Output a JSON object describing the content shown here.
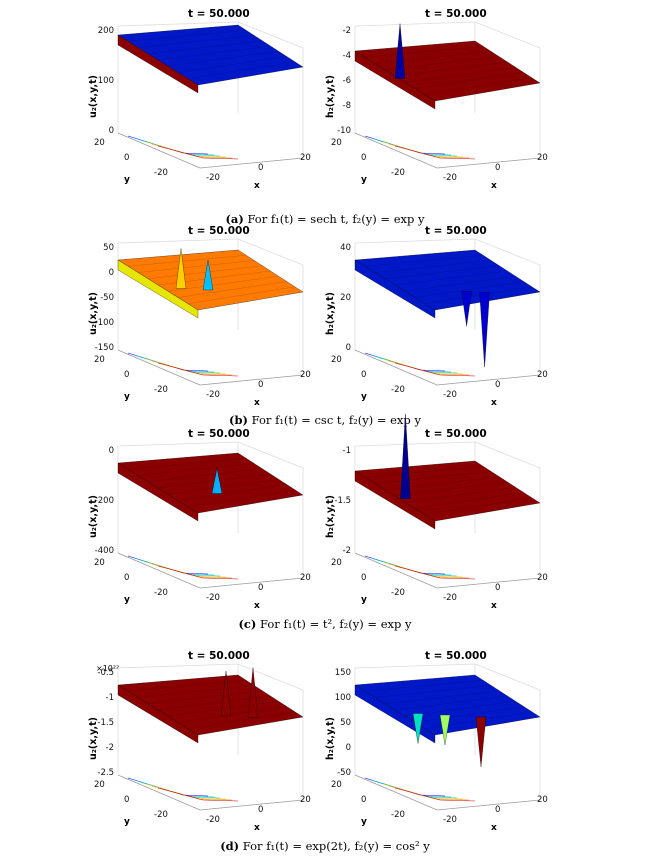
{
  "panels": [
    {
      "id": "a",
      "caption_tag": "(a)",
      "caption_text": "For f₁(t) = sech t, f₂(y) = exp y",
      "left": {
        "title": "t = 50.000",
        "zlabel": "u₂(x,y,t)",
        "zticks": [
          "200",
          "100",
          "0"
        ],
        "ylabel": "y",
        "xlabel": "x",
        "yticks": [
          "20",
          "0",
          "-20"
        ],
        "xticks": [
          "-20",
          "0",
          "20"
        ],
        "exponent": ""
      },
      "right": {
        "title": "t = 50.000",
        "zlabel": "h₂(x,y,t)",
        "zticks": [
          "-2",
          "-4",
          "-6",
          "-8",
          "-10"
        ],
        "ylabel": "y",
        "xlabel": "x",
        "yticks": [
          "20",
          "0",
          "-20"
        ],
        "xticks": [
          "-20",
          "0",
          "20"
        ],
        "exponent": ""
      }
    },
    {
      "id": "b",
      "caption_tag": "(b)",
      "caption_text": "For f₁(t) = csc t, f₂(y) = exp y",
      "left": {
        "title": "t = 50.000",
        "zlabel": "u₂(x,y,t)",
        "zticks": [
          "50",
          "0",
          "-50",
          "-100",
          "-150"
        ],
        "ylabel": "y",
        "xlabel": "x",
        "yticks": [
          "20",
          "0",
          "-20"
        ],
        "xticks": [
          "-20",
          "0",
          "20"
        ],
        "exponent": ""
      },
      "right": {
        "title": "t = 50.000",
        "zlabel": "h₂(x,y,t)",
        "zticks": [
          "40",
          "20",
          "0"
        ],
        "ylabel": "y",
        "xlabel": "x",
        "yticks": [
          "20",
          "0",
          "-20"
        ],
        "xticks": [
          "-20",
          "0",
          "20"
        ],
        "exponent": ""
      }
    },
    {
      "id": "c",
      "caption_tag": "(c)",
      "caption_text": "For f₁(t) = t², f₂(y) = exp y",
      "left": {
        "title": "t = 50.000",
        "zlabel": "u₂(x,y,t)",
        "zticks": [
          "0",
          "-200",
          "-400"
        ],
        "ylabel": "y",
        "xlabel": "x",
        "yticks": [
          "20",
          "0",
          "-20"
        ],
        "xticks": [
          "-20",
          "0",
          "20"
        ],
        "exponent": ""
      },
      "right": {
        "title": "t = 50.000",
        "zlabel": "h₂(x,y,t)",
        "zticks": [
          "-1",
          "-1.5",
          "-2"
        ],
        "ylabel": "y",
        "xlabel": "x",
        "yticks": [
          "20",
          "0",
          "-20"
        ],
        "xticks": [
          "-20",
          "0",
          "20"
        ],
        "exponent": ""
      }
    },
    {
      "id": "d",
      "caption_tag": "(d)",
      "caption_text": "For f₁(t) = exp(2t), f₂(y) = cos² y",
      "left": {
        "title": "t = 50.000",
        "zlabel": "u₂(x,y,t)",
        "zticks": [
          "-0.5",
          "-1",
          "-1.5",
          "-2",
          "-2.5"
        ],
        "ylabel": "y",
        "xlabel": "x",
        "yticks": [
          "20",
          "0",
          "-20"
        ],
        "xticks": [
          "-20",
          "0",
          "20"
        ],
        "exponent": "×10²²"
      },
      "right": {
        "title": "t = 50.000",
        "zlabel": "h₂(x,y,t)",
        "zticks": [
          "150",
          "100",
          "50",
          "0",
          "-50"
        ],
        "ylabel": "y",
        "xlabel": "x",
        "yticks": [
          "20",
          "0",
          "-20"
        ],
        "xticks": [
          "-20",
          "0",
          "20"
        ],
        "exponent": ""
      }
    }
  ],
  "chart_data": [
    {
      "type": "surface",
      "title": "t = 50.000",
      "zlabel": "u₂(x,y,t)",
      "xlabel": "x",
      "ylabel": "y",
      "x_range": [
        -20,
        20
      ],
      "y_range": [
        -20,
        20
      ],
      "zlim": [
        0,
        200
      ],
      "colormap": "jet"
    },
    {
      "type": "surface",
      "title": "t = 50.000",
      "zlabel": "h₂(x,y,t)",
      "xlabel": "x",
      "ylabel": "y",
      "x_range": [
        -20,
        20
      ],
      "y_range": [
        -20,
        20
      ],
      "zlim": [
        -10,
        -2
      ],
      "colormap": "jet"
    },
    {
      "type": "surface",
      "title": "t = 50.000",
      "zlabel": "u₂(x,y,t)",
      "xlabel": "x",
      "ylabel": "y",
      "x_range": [
        -20,
        20
      ],
      "y_range": [
        -20,
        20
      ],
      "zlim": [
        -150,
        50
      ],
      "colormap": "jet"
    },
    {
      "type": "surface",
      "title": "t = 50.000",
      "zlabel": "h₂(x,y,t)",
      "xlabel": "x",
      "ylabel": "y",
      "x_range": [
        -20,
        20
      ],
      "y_range": [
        -20,
        20
      ],
      "zlim": [
        0,
        40
      ],
      "colormap": "jet"
    },
    {
      "type": "surface",
      "title": "t = 50.000",
      "zlabel": "u₂(x,y,t)",
      "xlabel": "x",
      "ylabel": "y",
      "x_range": [
        -20,
        20
      ],
      "y_range": [
        -20,
        20
      ],
      "zlim": [
        -400,
        0
      ],
      "colormap": "jet"
    },
    {
      "type": "surface",
      "title": "t = 50.000",
      "zlabel": "h₂(x,y,t)",
      "xlabel": "x",
      "ylabel": "y",
      "x_range": [
        -20,
        20
      ],
      "y_range": [
        -20,
        20
      ],
      "zlim": [
        -2,
        -1
      ],
      "colormap": "jet"
    },
    {
      "type": "surface",
      "title": "t = 50.000",
      "zlabel": "u₂(x,y,t)",
      "xlabel": "x",
      "ylabel": "y",
      "x_range": [
        -20,
        20
      ],
      "y_range": [
        -20,
        20
      ],
      "zlim": [
        -2.5e+22,
        -5e+21
      ],
      "colormap": "jet"
    },
    {
      "type": "surface",
      "title": "t = 50.000",
      "zlabel": "h₂(x,y,t)",
      "xlabel": "x",
      "ylabel": "y",
      "x_range": [
        -20,
        20
      ],
      "y_range": [
        -20,
        20
      ],
      "zlim": [
        -50,
        150
      ],
      "colormap": "jet"
    }
  ],
  "colors": {
    "dark_red": "#8b0000",
    "red": "#d80000",
    "blue": "#0000c8",
    "axis": "#9a9a9a"
  }
}
